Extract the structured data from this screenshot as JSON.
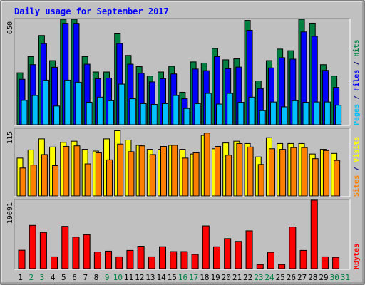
{
  "chart_data": {
    "type": "bar",
    "title": "Daily usage for September 2017",
    "days": [
      "1",
      "2",
      "3",
      "4",
      "5",
      "6",
      "7",
      "8",
      "9",
      "10",
      "11",
      "12",
      "13",
      "14",
      "15",
      "16",
      "17",
      "18",
      "19",
      "20",
      "21",
      "22",
      "23",
      "24",
      "25",
      "26",
      "27",
      "28",
      "29",
      "30",
      "31"
    ],
    "weekend_days": [
      2,
      3,
      9,
      10,
      16,
      17,
      23,
      24,
      30,
      31
    ],
    "panels": [
      {
        "name": "hits-files-pages",
        "y_max_label": "650",
        "ymax": 650,
        "side_label": [
          {
            "text": "Pages",
            "color": "#00c0ff"
          },
          {
            "text": " / ",
            "color": "#000080"
          },
          {
            "text": "Files",
            "color": "#0000ff"
          },
          {
            "text": " / ",
            "color": "#000080"
          },
          {
            "text": "Hits",
            "color": "#008040"
          }
        ],
        "series": [
          {
            "name": "Hits",
            "color": "#008040",
            "values": [
              320,
              420,
              550,
              395,
              650,
              650,
              420,
              325,
              325,
              560,
              427,
              358,
              300,
              325,
              360,
              200,
              387,
              380,
              470,
              400,
              406,
              643,
              270,
              395,
              466,
              456,
              650,
              626,
              370,
              300,
              0
            ]
          },
          {
            "name": "Files",
            "color": "#0000ff",
            "values": [
              280,
              370,
              500,
              354,
              625,
              625,
              373,
              283,
              287,
              500,
              373,
              317,
              264,
              284,
              313,
              160,
              343,
              333,
              420,
              345,
              355,
              582,
              223,
              350,
              413,
              404,
              572,
              545,
              335,
              230,
              0
            ]
          },
          {
            "name": "Pages",
            "color": "#00c0ff",
            "values": [
              150,
              180,
              275,
              115,
              275,
              262,
              138,
              170,
              148,
              250,
              160,
              130,
              125,
              130,
              180,
              100,
              130,
              193,
              127,
              193,
              138,
              170,
              87,
              140,
              110,
              148,
              138,
              140,
              140,
              120,
              0
            ]
          }
        ]
      },
      {
        "name": "visits-sites",
        "y_max_label": "115",
        "ymax": 115,
        "side_label": [
          {
            "text": "Sites",
            "color": "#ff8000"
          },
          {
            "text": " / ",
            "color": "#000080"
          },
          {
            "text": "Visits",
            "color": "#ffff00"
          }
        ],
        "series": [
          {
            "name": "Visits",
            "color": "#ffff00",
            "values": [
              65,
              79,
              98,
              84,
              92,
              94,
              80,
              77,
              98,
              112,
              96,
              87,
              80,
              80,
              87,
              80,
              72,
              104,
              81,
              91,
              94,
              90,
              67,
              100,
              90,
              90,
              90,
              72,
              80,
              73,
              0
            ]
          },
          {
            "name": "Sites",
            "color": "#ff8000",
            "values": [
              48,
              53,
              71,
              52,
              85,
              86,
              55,
              74,
              62,
              89,
              76,
              86,
              71,
              85,
              87,
              65,
              74,
              108,
              85,
              70,
              90,
              84,
              54,
              81,
              80,
              83,
              83,
              64,
              78,
              61,
              0
            ]
          }
        ]
      },
      {
        "name": "kbytes",
        "y_max_label": "19091",
        "ymax": 19091,
        "side_label": [
          {
            "text": "KBytes",
            "color": "#ff0000"
          }
        ],
        "series": [
          {
            "name": "KBytes",
            "color": "#ff0000",
            "values": [
              5140,
              12070,
              10100,
              3300,
              11800,
              8800,
              9480,
              4660,
              4890,
              3300,
              5090,
              6260,
              3300,
              6120,
              4760,
              4760,
              3970,
              11920,
              6100,
              8380,
              7600,
              10550,
              1150,
              4560,
              1150,
              11610,
              5090,
              19091,
              3300,
              3150,
              0
            ]
          }
        ]
      }
    ]
  }
}
